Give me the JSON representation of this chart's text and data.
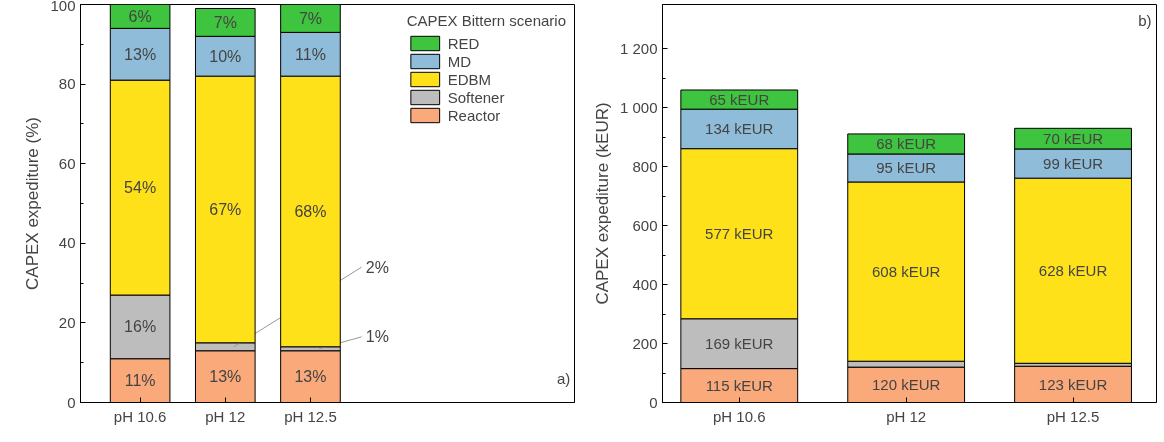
{
  "chart_data": [
    {
      "type": "bar",
      "stacked": true,
      "categories": [
        "pH 10.6",
        "pH 12",
        "pH 12.5"
      ],
      "ylabel": "CAPEX expediture (%)",
      "ylim": [
        0,
        100
      ],
      "yticks": [
        0,
        20,
        40,
        60,
        80,
        100
      ],
      "legend": "top right",
      "legend_title": "CAPEX Bittern scenario",
      "annotations": [
        "a)"
      ],
      "series": [
        {
          "name": "Reactor",
          "color": "#f9a97a",
          "values": [
            11,
            13,
            13
          ],
          "value_labels": [
            "11%",
            "13%",
            "13%"
          ]
        },
        {
          "name": "Softener",
          "color": "#bdbdbd",
          "values": [
            16,
            2,
            1
          ],
          "value_labels": [
            "16%",
            "2%",
            "1%"
          ]
        },
        {
          "name": "EDBM",
          "color": "#ffe11a",
          "values": [
            54,
            67,
            68
          ],
          "value_labels": [
            "54%",
            "67%",
            "68%"
          ]
        },
        {
          "name": "MD",
          "color": "#8fbcd8",
          "values": [
            13,
            10,
            11
          ],
          "value_labels": [
            "13%",
            "10%",
            "11%"
          ]
        },
        {
          "name": "RED",
          "color": "#3fc43f",
          "values": [
            6,
            7,
            7
          ],
          "value_labels": [
            "6%",
            "7%",
            "7%"
          ]
        }
      ]
    },
    {
      "type": "bar",
      "stacked": true,
      "categories": [
        "pH 10.6",
        "pH 12",
        "pH 12.5"
      ],
      "ylabel": "CAPEX expediture (kEUR)",
      "ylim": [
        0,
        1350
      ],
      "yticks": [
        0,
        200,
        400,
        600,
        800,
        {
          "value": 1000,
          "label": "1 000"
        },
        {
          "value": 1200,
          "label": "1 200"
        }
      ],
      "annotations": [
        "b)"
      ],
      "series": [
        {
          "color": "#f9a97a",
          "values": [
            115,
            120,
            123
          ],
          "value_labels": [
            "115 kEUR",
            "120 kEUR",
            "123 kEUR"
          ]
        },
        {
          "color": "#bdbdbd",
          "values": [
            169,
            20,
            10
          ],
          "value_labels": [
            "169 kEUR",
            null,
            null
          ]
        },
        {
          "color": "#ffe11a",
          "values": [
            577,
            608,
            628
          ],
          "value_labels": [
            "577 kEUR",
            "608 kEUR",
            "628 kEUR"
          ]
        },
        {
          "color": "#8fbcd8",
          "values": [
            134,
            95,
            99
          ],
          "value_labels": [
            "134 kEUR",
            "95 kEUR",
            "99 kEUR"
          ]
        },
        {
          "color": "#3fc43f",
          "values": [
            65,
            68,
            70
          ],
          "value_labels": [
            "65 kEUR",
            "68 kEUR",
            "70 kEUR"
          ]
        }
      ]
    }
  ]
}
